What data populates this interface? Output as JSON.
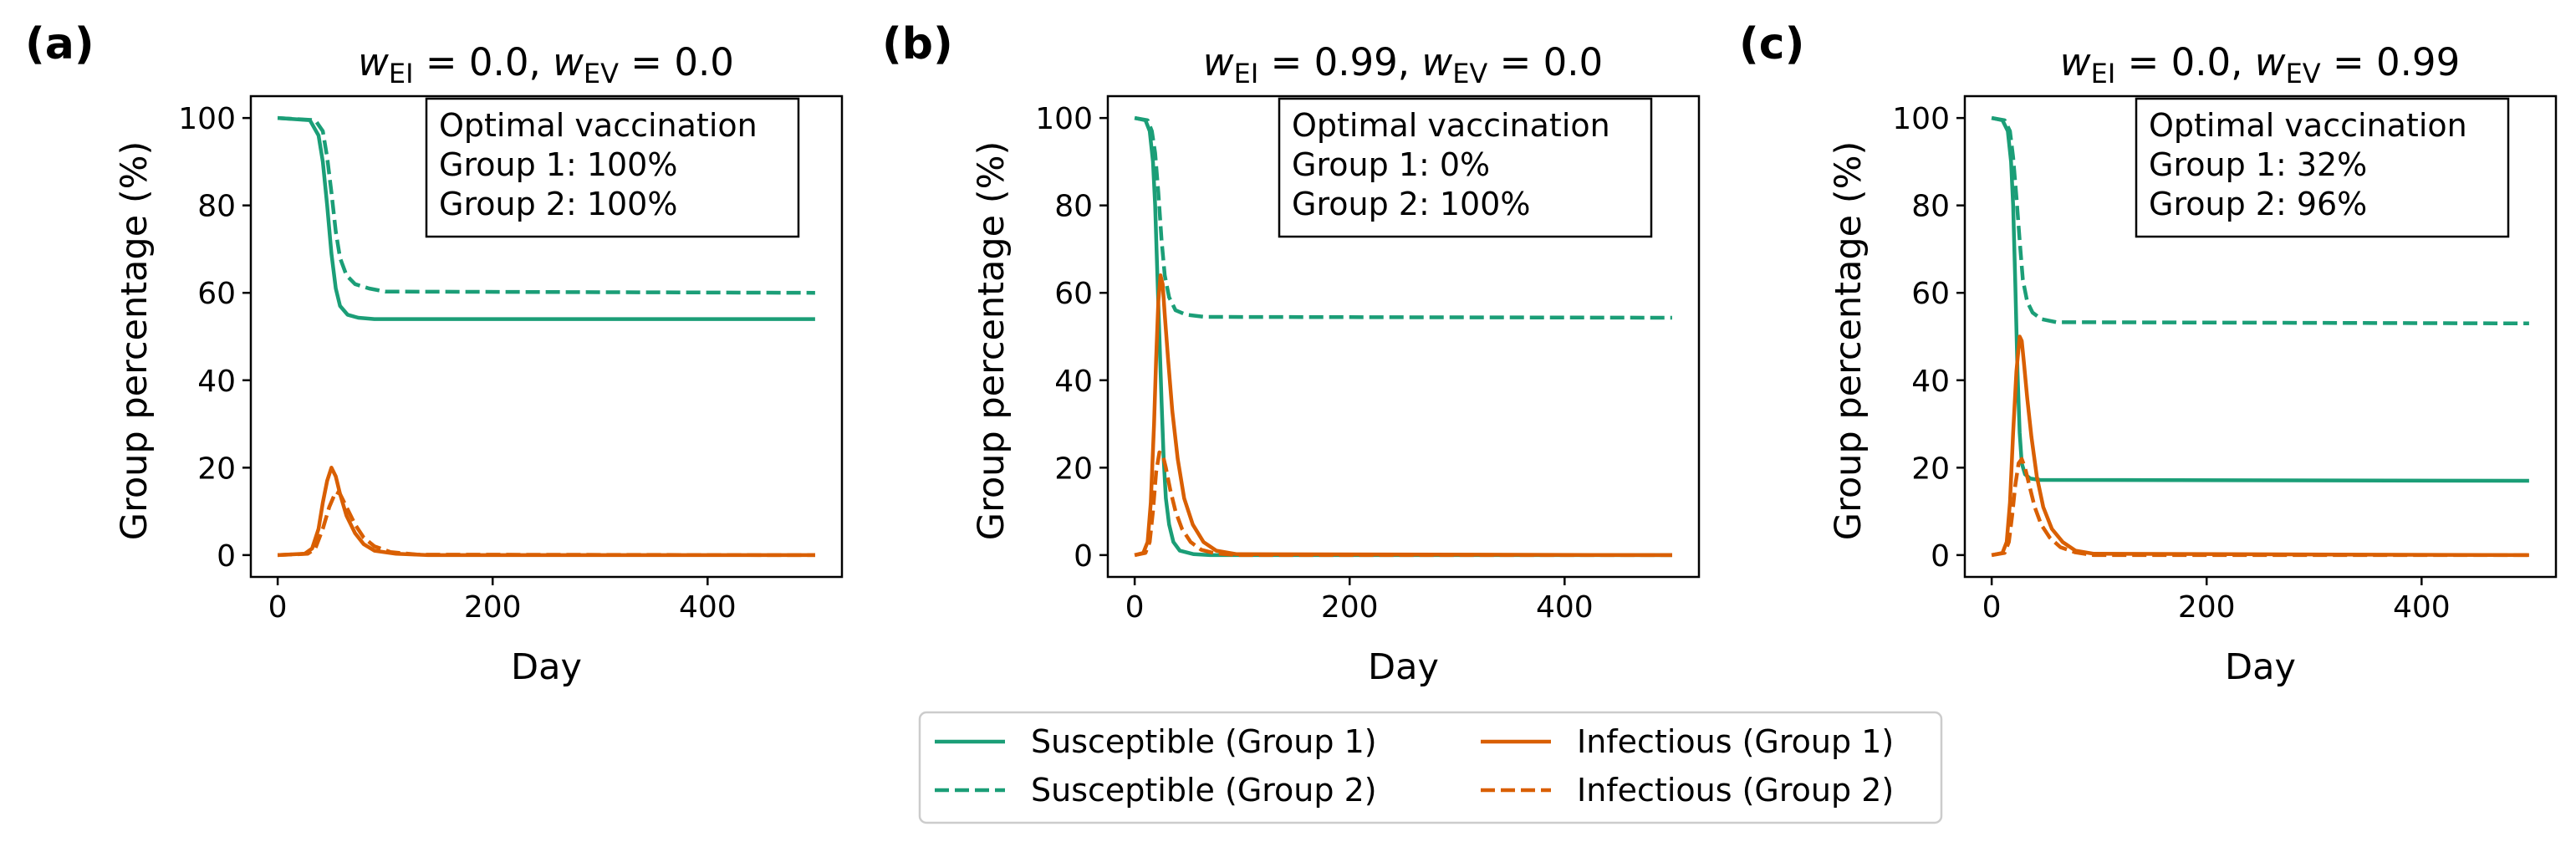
{
  "colors": {
    "susceptible": "#1b9e77",
    "infectious": "#d95f02",
    "axis": "#000000",
    "legend_border": "#cccccc"
  },
  "legend": {
    "placement": "bottom-center",
    "columns": 2,
    "entries": [
      {
        "label": "Susceptible (Group 1)",
        "color": "#1b9e77",
        "style": "solid"
      },
      {
        "label": "Susceptible (Group 2)",
        "color": "#1b9e77",
        "style": "dashed"
      },
      {
        "label": "Infectious (Group 1)",
        "color": "#d95f02",
        "style": "solid"
      },
      {
        "label": "Infectious (Group 2)",
        "color": "#d95f02",
        "style": "dashed"
      }
    ]
  },
  "chart_data": [
    {
      "type": "line",
      "panel_label": "(a)",
      "title_parts": {
        "w1": "w",
        "sub1": "EI",
        "v1": " = 0.0, ",
        "w2": "w",
        "sub2": "EV",
        "v2": " = 0.0"
      },
      "xlabel": "Day",
      "ylabel": "Group percentage (%)",
      "xlim": [
        -25,
        525
      ],
      "ylim": [
        -5,
        105
      ],
      "xticks": [
        0,
        200,
        400
      ],
      "yticks": [
        0,
        20,
        40,
        60,
        80,
        100
      ],
      "annotation": [
        "Optimal vaccination",
        "Group 1: 100%",
        "Group 2: 100%"
      ],
      "annotation_placement": "top-right",
      "series": [
        {
          "name": "Susceptible (Group 1)",
          "color": "#1b9e77",
          "style": "solid",
          "points": [
            [
              0,
              100
            ],
            [
              30,
              99.5
            ],
            [
              38,
              96
            ],
            [
              42,
              90
            ],
            [
              46,
              80
            ],
            [
              50,
              69
            ],
            [
              54,
              61
            ],
            [
              58,
              57
            ],
            [
              65,
              55
            ],
            [
              75,
              54.3
            ],
            [
              90,
              54
            ],
            [
              500,
              54
            ]
          ]
        },
        {
          "name": "Susceptible (Group 2)",
          "color": "#1b9e77",
          "style": "dashed",
          "points": [
            [
              0,
              100
            ],
            [
              35,
              99.5
            ],
            [
              42,
              97
            ],
            [
              46,
              91
            ],
            [
              50,
              83
            ],
            [
              54,
              74
            ],
            [
              58,
              68
            ],
            [
              64,
              64
            ],
            [
              72,
              62
            ],
            [
              85,
              61
            ],
            [
              100,
              60.3
            ],
            [
              500,
              60
            ]
          ]
        },
        {
          "name": "Infectious (Group 1)",
          "color": "#d95f02",
          "style": "solid",
          "points": [
            [
              0,
              0
            ],
            [
              25,
              0.3
            ],
            [
              32,
              1.5
            ],
            [
              38,
              6
            ],
            [
              42,
              12
            ],
            [
              46,
              17
            ],
            [
              50,
              20
            ],
            [
              54,
              18
            ],
            [
              58,
              14
            ],
            [
              64,
              9
            ],
            [
              72,
              5
            ],
            [
              80,
              2.5
            ],
            [
              90,
              1
            ],
            [
              110,
              0.3
            ],
            [
              140,
              0
            ],
            [
              500,
              0
            ]
          ]
        },
        {
          "name": "Infectious (Group 2)",
          "color": "#d95f02",
          "style": "dashed",
          "points": [
            [
              0,
              0
            ],
            [
              28,
              0.3
            ],
            [
              35,
              1.5
            ],
            [
              42,
              6
            ],
            [
              48,
              11
            ],
            [
              54,
              14.5
            ],
            [
              58,
              14
            ],
            [
              64,
              11
            ],
            [
              72,
              7
            ],
            [
              80,
              4
            ],
            [
              90,
              2
            ],
            [
              105,
              0.7
            ],
            [
              130,
              0.1
            ],
            [
              500,
              0
            ]
          ]
        }
      ]
    },
    {
      "type": "line",
      "panel_label": "(b)",
      "title_parts": {
        "w1": "w",
        "sub1": "EI",
        "v1": " = 0.99, ",
        "w2": "w",
        "sub2": "EV",
        "v2": " = 0.0"
      },
      "xlabel": "Day",
      "ylabel": "Group percentage (%)",
      "xlim": [
        -25,
        525
      ],
      "ylim": [
        -5,
        105
      ],
      "xticks": [
        0,
        200,
        400
      ],
      "yticks": [
        0,
        20,
        40,
        60,
        80,
        100
      ],
      "annotation": [
        "Optimal vaccination",
        "Group 1: 0%",
        "Group 2: 100%"
      ],
      "annotation_placement": "top-right",
      "series": [
        {
          "name": "Susceptible (Group 1)",
          "color": "#1b9e77",
          "style": "solid",
          "points": [
            [
              0,
              100
            ],
            [
              10,
              99.5
            ],
            [
              14,
              97
            ],
            [
              17,
              90
            ],
            [
              19,
              80
            ],
            [
              21,
              65
            ],
            [
              23,
              50
            ],
            [
              25,
              35
            ],
            [
              27,
              22
            ],
            [
              29,
              13
            ],
            [
              32,
              7
            ],
            [
              36,
              3
            ],
            [
              42,
              1
            ],
            [
              55,
              0.2
            ],
            [
              70,
              0
            ],
            [
              500,
              0
            ]
          ]
        },
        {
          "name": "Susceptible (Group 2)",
          "color": "#1b9e77",
          "style": "dashed",
          "points": [
            [
              0,
              100
            ],
            [
              12,
              99.5
            ],
            [
              16,
              97
            ],
            [
              19,
              92
            ],
            [
              22,
              83
            ],
            [
              25,
              72
            ],
            [
              28,
              64
            ],
            [
              32,
              59
            ],
            [
              38,
              56
            ],
            [
              48,
              55
            ],
            [
              65,
              54.5
            ],
            [
              500,
              54.3
            ]
          ]
        },
        {
          "name": "Infectious (Group 1)",
          "color": "#d95f02",
          "style": "solid",
          "points": [
            [
              0,
              0
            ],
            [
              8,
              0.5
            ],
            [
              12,
              3
            ],
            [
              15,
              12
            ],
            [
              18,
              30
            ],
            [
              20,
              45
            ],
            [
              22,
              58
            ],
            [
              24,
              64
            ],
            [
              26,
              62
            ],
            [
              28,
              55
            ],
            [
              31,
              45
            ],
            [
              35,
              33
            ],
            [
              40,
              22
            ],
            [
              46,
              13
            ],
            [
              54,
              7
            ],
            [
              64,
              3
            ],
            [
              76,
              1
            ],
            [
              95,
              0.2
            ],
            [
              500,
              0
            ]
          ]
        },
        {
          "name": "Infectious (Group 2)",
          "color": "#d95f02",
          "style": "dashed",
          "points": [
            [
              0,
              0
            ],
            [
              10,
              0.5
            ],
            [
              14,
              3
            ],
            [
              17,
              10
            ],
            [
              20,
              19
            ],
            [
              23,
              23.5
            ],
            [
              26,
              23
            ],
            [
              29,
              20
            ],
            [
              33,
              15
            ],
            [
              38,
              10
            ],
            [
              44,
              6
            ],
            [
              52,
              3
            ],
            [
              62,
              1.2
            ],
            [
              75,
              0.4
            ],
            [
              95,
              0
            ],
            [
              500,
              0
            ]
          ]
        }
      ]
    },
    {
      "type": "line",
      "panel_label": "(c)",
      "title_parts": {
        "w1": "w",
        "sub1": "EI",
        "v1": " = 0.0, ",
        "w2": "w",
        "sub2": "EV",
        "v2": " = 0.99"
      },
      "xlabel": "Day",
      "ylabel": "Group percentage (%)",
      "xlim": [
        -25,
        525
      ],
      "ylim": [
        -5,
        105
      ],
      "xticks": [
        0,
        200,
        400
      ],
      "yticks": [
        0,
        20,
        40,
        60,
        80,
        100
      ],
      "annotation": [
        "Optimal vaccination",
        "Group 1: 32%",
        "Group 2: 96%"
      ],
      "annotation_placement": "top-right",
      "series": [
        {
          "name": "Susceptible (Group 1)",
          "color": "#1b9e77",
          "style": "solid",
          "points": [
            [
              0,
              100
            ],
            [
              10,
              99.5
            ],
            [
              15,
              97
            ],
            [
              18,
              90
            ],
            [
              20,
              80
            ],
            [
              22,
              62
            ],
            [
              24,
              42
            ],
            [
              26,
              28
            ],
            [
              28,
              21
            ],
            [
              31,
              18.5
            ],
            [
              36,
              17.5
            ],
            [
              45,
              17.2
            ],
            [
              500,
              17
            ]
          ]
        },
        {
          "name": "Susceptible (Group 2)",
          "color": "#1b9e77",
          "style": "dashed",
          "points": [
            [
              0,
              100
            ],
            [
              12,
              99.5
            ],
            [
              17,
              97
            ],
            [
              20,
              91
            ],
            [
              23,
              82
            ],
            [
              26,
              72
            ],
            [
              29,
              63
            ],
            [
              33,
              58
            ],
            [
              38,
              55.5
            ],
            [
              46,
              54
            ],
            [
              60,
              53.3
            ],
            [
              500,
              53
            ]
          ]
        },
        {
          "name": "Infectious (Group 1)",
          "color": "#d95f02",
          "style": "solid",
          "points": [
            [
              0,
              0
            ],
            [
              10,
              0.5
            ],
            [
              14,
              3
            ],
            [
              17,
              12
            ],
            [
              20,
              28
            ],
            [
              23,
              42
            ],
            [
              26,
              50
            ],
            [
              28,
              49
            ],
            [
              30,
              44
            ],
            [
              33,
              36
            ],
            [
              37,
              27
            ],
            [
              42,
              18
            ],
            [
              48,
              11
            ],
            [
              56,
              6
            ],
            [
              66,
              3
            ],
            [
              78,
              1
            ],
            [
              95,
              0.3
            ],
            [
              500,
              0
            ]
          ]
        },
        {
          "name": "Infectious (Group 2)",
          "color": "#d95f02",
          "style": "dashed",
          "points": [
            [
              0,
              0
            ],
            [
              12,
              0.5
            ],
            [
              16,
              3
            ],
            [
              19,
              9
            ],
            [
              22,
              16
            ],
            [
              25,
              21
            ],
            [
              28,
              22
            ],
            [
              31,
              20
            ],
            [
              35,
              16
            ],
            [
              40,
              11
            ],
            [
              46,
              7
            ],
            [
              54,
              4
            ],
            [
              64,
              1.8
            ],
            [
              78,
              0.6
            ],
            [
              95,
              0
            ],
            [
              500,
              0
            ]
          ]
        }
      ]
    }
  ]
}
